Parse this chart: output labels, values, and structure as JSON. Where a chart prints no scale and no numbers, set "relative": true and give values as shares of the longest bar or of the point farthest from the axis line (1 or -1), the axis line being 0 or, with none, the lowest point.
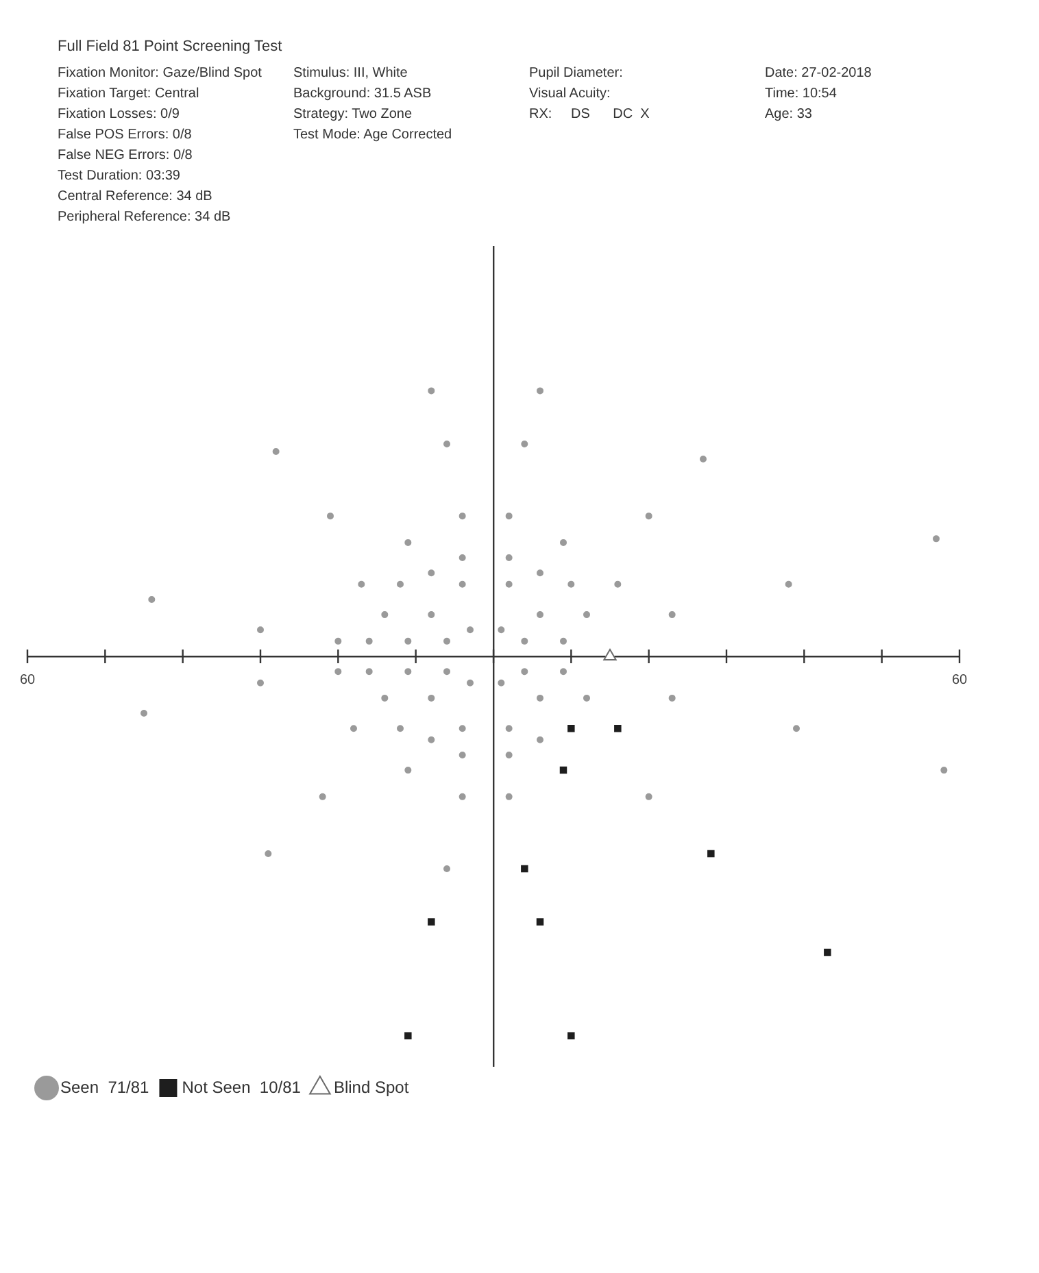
{
  "chart_data": {
    "type": "scatter",
    "title": "Full Field 81 Point Screening Test",
    "annotations": [
      "Fixation Monitor: Gaze/Blind Spot",
      "Stimulus: III, White",
      "Pupil Diameter:",
      "Date: 27-02-2018",
      "Fixation Target: Central",
      "Background: 31.5 ASB",
      "Visual Acuity:",
      "Time: 10:54",
      "Fixation Losses: 0/9",
      "Strategy: Two Zone",
      "RX:     DS      DC  X",
      "Age: 33",
      "False POS Errors: 0/8",
      "Test Mode: Age Corrected",
      "False NEG Errors: 0/8",
      "Test Duration: 03:39",
      "Central Reference: 34 dB",
      "Peripheral Reference: 34 dB"
    ],
    "xlim": [
      -60,
      60
    ],
    "xticks": [
      {
        "value": -60,
        "label": "60"
      },
      {
        "value": -50,
        "label": null
      },
      {
        "value": -40,
        "label": null
      },
      {
        "value": -30,
        "label": null
      },
      {
        "value": -20,
        "label": null
      },
      {
        "value": -10,
        "label": null
      },
      {
        "value": 0,
        "label": null
      },
      {
        "value": 10,
        "label": null
      },
      {
        "value": 20,
        "label": null
      },
      {
        "value": 30,
        "label": null
      },
      {
        "value": 40,
        "label": null
      },
      {
        "value": 50,
        "label": null
      },
      {
        "value": 60,
        "label": "60"
      }
    ],
    "relative": true,
    "legend": "bottom left",
    "series": [
      {
        "name": "Seen  71/81",
        "color": "#9a9a9a",
        "marker": "circle",
        "x": [
          -8,
          -6,
          -28,
          -21,
          -4,
          -11,
          -4,
          -8,
          -44,
          -17,
          -12,
          -4,
          -14,
          -8,
          -30,
          -3,
          -20,
          -16,
          -11,
          -6,
          6,
          4,
          27,
          2,
          20,
          9,
          57,
          2,
          6,
          2,
          10,
          16,
          38,
          6,
          12,
          23,
          1,
          4,
          9,
          -20,
          -16,
          -11,
          -6,
          -30,
          -3,
          -14,
          -8,
          -45,
          -18,
          -12,
          -4,
          -8,
          -4,
          -11,
          -22,
          -4,
          -29,
          -6,
          4,
          9,
          1,
          6,
          12,
          23,
          2,
          39,
          6,
          2,
          58,
          2,
          20
        ],
        "values": [
          0.7,
          0.56,
          0.54,
          0.37,
          0.37,
          0.3,
          0.26,
          0.22,
          0.15,
          0.19,
          0.19,
          0.19,
          0.11,
          0.11,
          0.07,
          0.07,
          0.04,
          0.04,
          0.04,
          0.04,
          0.7,
          0.56,
          0.52,
          0.37,
          0.37,
          0.3,
          0.31,
          0.26,
          0.22,
          0.19,
          0.19,
          0.19,
          0.19,
          0.11,
          0.11,
          0.11,
          0.07,
          0.04,
          0.04,
          -0.04,
          -0.04,
          -0.04,
          -0.04,
          -0.07,
          -0.07,
          -0.11,
          -0.11,
          -0.15,
          -0.19,
          -0.19,
          -0.19,
          -0.22,
          -0.26,
          -0.3,
          -0.37,
          -0.37,
          -0.52,
          -0.56,
          -0.04,
          -0.04,
          -0.07,
          -0.11,
          -0.11,
          -0.11,
          -0.19,
          -0.19,
          -0.22,
          -0.26,
          -0.3,
          -0.37,
          -0.37
        ]
      },
      {
        "name": "Not Seen  10/81",
        "color": "#1e1e1e",
        "marker": "square",
        "x": [
          -8,
          -11,
          10,
          16,
          9,
          4,
          28,
          6,
          43,
          10
        ],
        "values": [
          -0.7,
          -1,
          -0.19,
          -0.19,
          -0.3,
          -0.56,
          -0.52,
          -0.7,
          -0.78,
          -1
        ]
      },
      {
        "name": "Blind Spot",
        "color": "#6a6a6a",
        "marker": "triangle",
        "x": [
          15
        ],
        "values": [
          0
        ]
      }
    ]
  }
}
